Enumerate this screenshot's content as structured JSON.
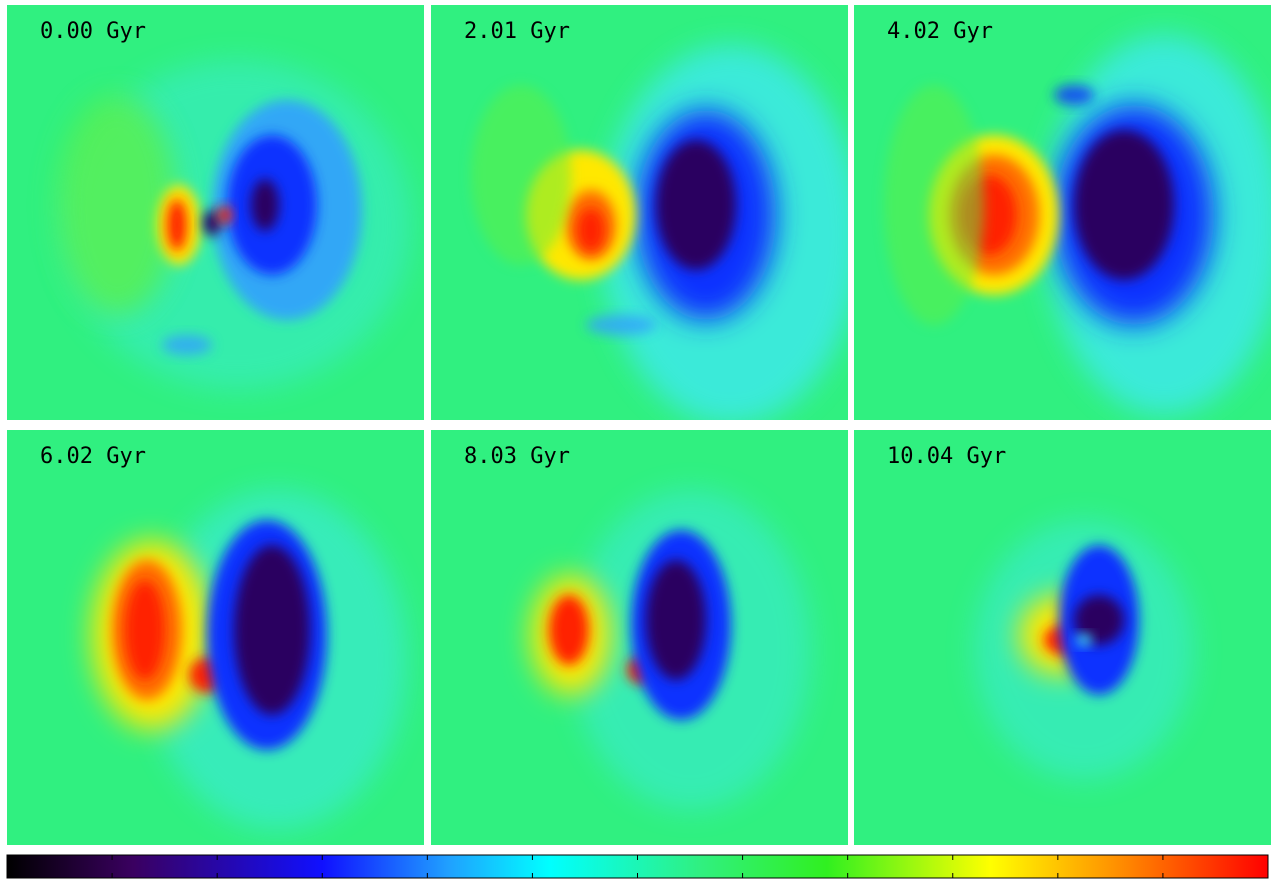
{
  "panels": [
    {
      "label": "0.00 Gyr"
    },
    {
      "label": "2.01 Gyr"
    },
    {
      "label": "4.02 Gyr"
    },
    {
      "label": "6.02 Gyr"
    },
    {
      "label": "8.03 Gyr"
    },
    {
      "label": "10.04 Gyr"
    }
  ]
}
